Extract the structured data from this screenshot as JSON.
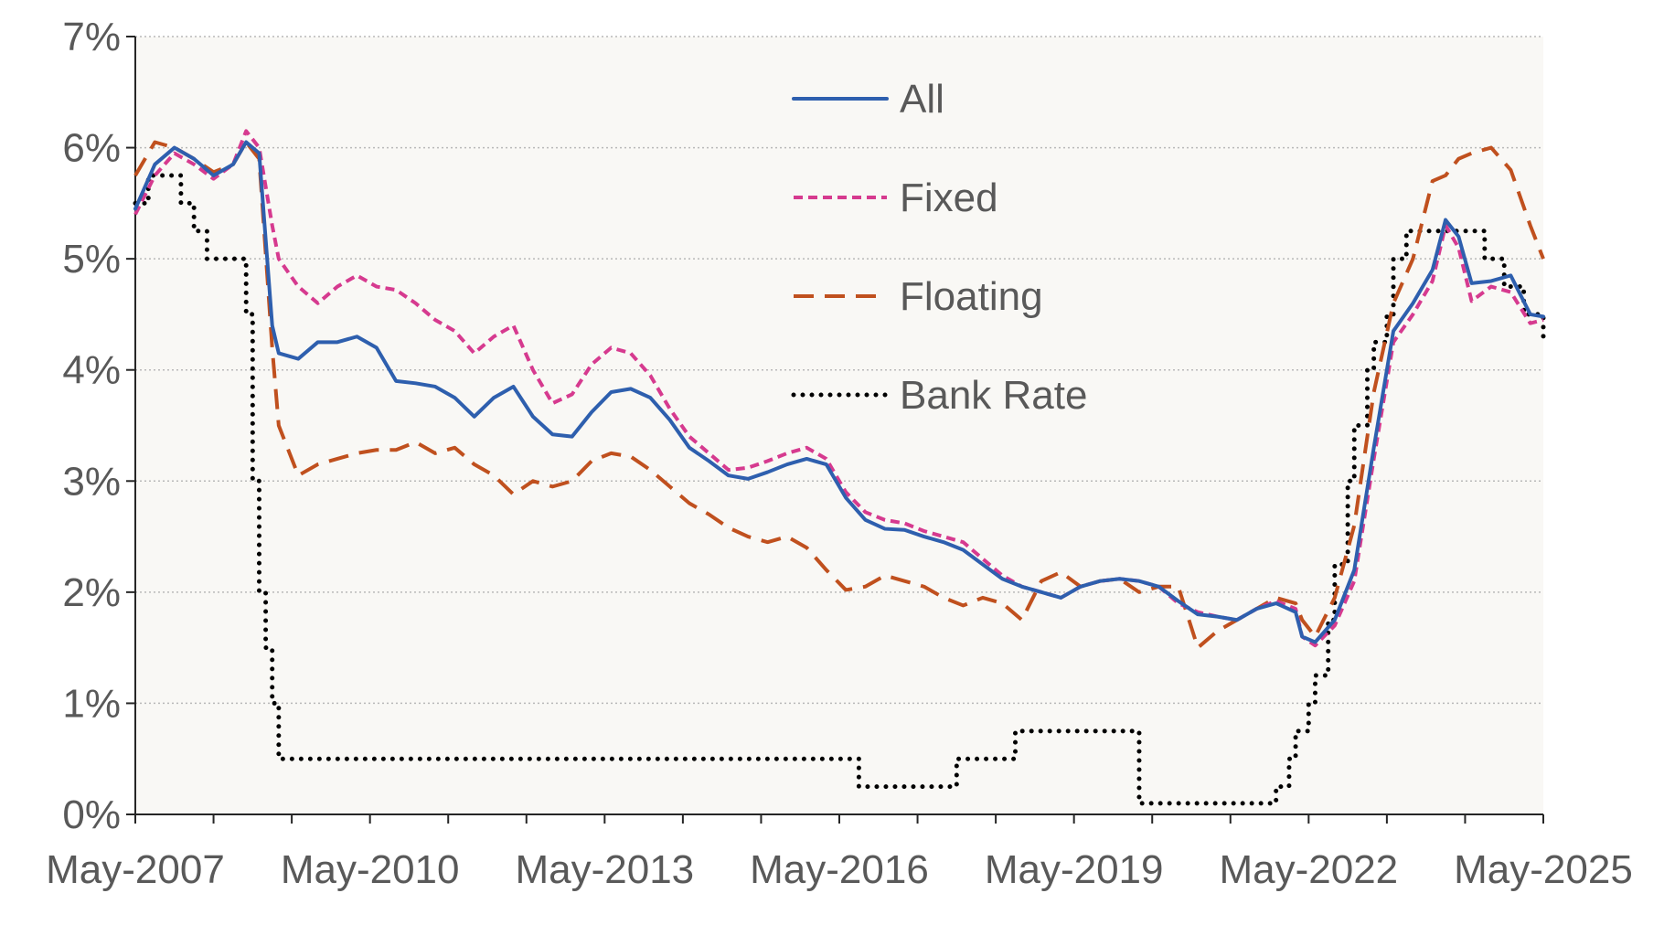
{
  "chart_data": {
    "type": "line",
    "x_unit": "month",
    "x_range": [
      "2007-05",
      "2025-05"
    ],
    "x_tick_labels": [
      "May-2007",
      "May-2010",
      "May-2013",
      "May-2016",
      "May-2019",
      "May-2022",
      "May-2025"
    ],
    "y_tick_labels": [
      "0%",
      "1%",
      "2%",
      "3%",
      "4%",
      "5%",
      "6%",
      "7%"
    ],
    "ylim": [
      0,
      7
    ],
    "grid": true,
    "legend_position": "top-center",
    "background_color": "#f9f8f5",
    "series": [
      {
        "name": "All",
        "style": "solid",
        "color": "#2e5fae",
        "points": [
          [
            "2007-05",
            5.45
          ],
          [
            "2007-08",
            5.85
          ],
          [
            "2007-11",
            6.0
          ],
          [
            "2008-02",
            5.9
          ],
          [
            "2008-05",
            5.75
          ],
          [
            "2008-08",
            5.85
          ],
          [
            "2008-10",
            6.05
          ],
          [
            "2008-12",
            5.95
          ],
          [
            "2009-02",
            4.4
          ],
          [
            "2009-03",
            4.15
          ],
          [
            "2009-06",
            4.1
          ],
          [
            "2009-09",
            4.25
          ],
          [
            "2009-12",
            4.25
          ],
          [
            "2010-03",
            4.3
          ],
          [
            "2010-06",
            4.2
          ],
          [
            "2010-09",
            3.9
          ],
          [
            "2010-12",
            3.88
          ],
          [
            "2011-03",
            3.85
          ],
          [
            "2011-06",
            3.75
          ],
          [
            "2011-09",
            3.58
          ],
          [
            "2011-12",
            3.75
          ],
          [
            "2012-03",
            3.85
          ],
          [
            "2012-06",
            3.58
          ],
          [
            "2012-09",
            3.42
          ],
          [
            "2012-12",
            3.4
          ],
          [
            "2013-03",
            3.62
          ],
          [
            "2013-06",
            3.8
          ],
          [
            "2013-09",
            3.83
          ],
          [
            "2013-12",
            3.75
          ],
          [
            "2014-03",
            3.55
          ],
          [
            "2014-06",
            3.3
          ],
          [
            "2014-09",
            3.18
          ],
          [
            "2014-12",
            3.05
          ],
          [
            "2015-03",
            3.02
          ],
          [
            "2015-06",
            3.08
          ],
          [
            "2015-09",
            3.15
          ],
          [
            "2015-12",
            3.2
          ],
          [
            "2016-03",
            3.15
          ],
          [
            "2016-06",
            2.85
          ],
          [
            "2016-09",
            2.65
          ],
          [
            "2016-12",
            2.57
          ],
          [
            "2017-03",
            2.56
          ],
          [
            "2017-06",
            2.5
          ],
          [
            "2017-09",
            2.45
          ],
          [
            "2017-12",
            2.38
          ],
          [
            "2018-03",
            2.25
          ],
          [
            "2018-06",
            2.12
          ],
          [
            "2018-09",
            2.05
          ],
          [
            "2018-12",
            2.0
          ],
          [
            "2019-03",
            1.95
          ],
          [
            "2019-06",
            2.05
          ],
          [
            "2019-09",
            2.1
          ],
          [
            "2019-12",
            2.12
          ],
          [
            "2020-03",
            2.1
          ],
          [
            "2020-06",
            2.05
          ],
          [
            "2020-09",
            1.92
          ],
          [
            "2020-12",
            1.8
          ],
          [
            "2021-03",
            1.78
          ],
          [
            "2021-06",
            1.75
          ],
          [
            "2021-09",
            1.85
          ],
          [
            "2021-12",
            1.9
          ],
          [
            "2022-03",
            1.82
          ],
          [
            "2022-04",
            1.6
          ],
          [
            "2022-06",
            1.55
          ],
          [
            "2022-09",
            1.75
          ],
          [
            "2022-12",
            2.2
          ],
          [
            "2023-03",
            3.3
          ],
          [
            "2023-06",
            4.35
          ],
          [
            "2023-09",
            4.6
          ],
          [
            "2023-12",
            4.9
          ],
          [
            "2024-02",
            5.35
          ],
          [
            "2024-04",
            5.2
          ],
          [
            "2024-06",
            4.78
          ],
          [
            "2024-09",
            4.8
          ],
          [
            "2024-12",
            4.85
          ],
          [
            "2025-03",
            4.5
          ],
          [
            "2025-05",
            4.48
          ]
        ]
      },
      {
        "name": "Fixed",
        "style": "dashed",
        "color": "#d63a8f",
        "points": [
          [
            "2007-05",
            5.4
          ],
          [
            "2007-08",
            5.75
          ],
          [
            "2007-11",
            5.95
          ],
          [
            "2008-02",
            5.85
          ],
          [
            "2008-05",
            5.72
          ],
          [
            "2008-08",
            5.85
          ],
          [
            "2008-10",
            6.15
          ],
          [
            "2008-12",
            6.0
          ],
          [
            "2009-02",
            5.3
          ],
          [
            "2009-03",
            5.0
          ],
          [
            "2009-06",
            4.75
          ],
          [
            "2009-09",
            4.6
          ],
          [
            "2009-12",
            4.75
          ],
          [
            "2010-03",
            4.85
          ],
          [
            "2010-06",
            4.75
          ],
          [
            "2010-09",
            4.72
          ],
          [
            "2010-12",
            4.6
          ],
          [
            "2011-03",
            4.45
          ],
          [
            "2011-06",
            4.35
          ],
          [
            "2011-09",
            4.15
          ],
          [
            "2011-12",
            4.3
          ],
          [
            "2012-03",
            4.4
          ],
          [
            "2012-06",
            4.0
          ],
          [
            "2012-09",
            3.7
          ],
          [
            "2012-12",
            3.78
          ],
          [
            "2013-03",
            4.05
          ],
          [
            "2013-06",
            4.2
          ],
          [
            "2013-09",
            4.15
          ],
          [
            "2013-12",
            3.95
          ],
          [
            "2014-03",
            3.65
          ],
          [
            "2014-06",
            3.4
          ],
          [
            "2014-09",
            3.25
          ],
          [
            "2014-12",
            3.1
          ],
          [
            "2015-03",
            3.12
          ],
          [
            "2015-06",
            3.18
          ],
          [
            "2015-09",
            3.25
          ],
          [
            "2015-12",
            3.3
          ],
          [
            "2016-03",
            3.2
          ],
          [
            "2016-06",
            2.9
          ],
          [
            "2016-09",
            2.72
          ],
          [
            "2016-12",
            2.65
          ],
          [
            "2017-03",
            2.62
          ],
          [
            "2017-06",
            2.55
          ],
          [
            "2017-09",
            2.5
          ],
          [
            "2017-12",
            2.45
          ],
          [
            "2018-03",
            2.3
          ],
          [
            "2018-06",
            2.15
          ],
          [
            "2018-09",
            2.05
          ],
          [
            "2018-12",
            2.0
          ],
          [
            "2019-03",
            1.95
          ],
          [
            "2019-06",
            2.05
          ],
          [
            "2019-09",
            2.1
          ],
          [
            "2019-12",
            2.12
          ],
          [
            "2020-03",
            2.1
          ],
          [
            "2020-06",
            2.05
          ],
          [
            "2020-09",
            1.9
          ],
          [
            "2020-12",
            1.82
          ],
          [
            "2021-03",
            1.78
          ],
          [
            "2021-06",
            1.75
          ],
          [
            "2021-09",
            1.85
          ],
          [
            "2021-12",
            1.92
          ],
          [
            "2022-03",
            1.85
          ],
          [
            "2022-04",
            1.6
          ],
          [
            "2022-06",
            1.52
          ],
          [
            "2022-09",
            1.7
          ],
          [
            "2022-12",
            2.1
          ],
          [
            "2023-03",
            3.2
          ],
          [
            "2023-06",
            4.25
          ],
          [
            "2023-09",
            4.5
          ],
          [
            "2023-12",
            4.8
          ],
          [
            "2024-02",
            5.3
          ],
          [
            "2024-04",
            5.1
          ],
          [
            "2024-06",
            4.62
          ],
          [
            "2024-09",
            4.75
          ],
          [
            "2024-12",
            4.7
          ],
          [
            "2025-03",
            4.42
          ],
          [
            "2025-05",
            4.45
          ]
        ]
      },
      {
        "name": "Floating",
        "style": "long-dashed",
        "color": "#c0501e",
        "points": [
          [
            "2007-05",
            5.75
          ],
          [
            "2007-08",
            6.05
          ],
          [
            "2007-11",
            6.0
          ],
          [
            "2008-02",
            5.9
          ],
          [
            "2008-05",
            5.78
          ],
          [
            "2008-08",
            5.85
          ],
          [
            "2008-10",
            6.05
          ],
          [
            "2008-12",
            5.9
          ],
          [
            "2009-02",
            4.2
          ],
          [
            "2009-03",
            3.5
          ],
          [
            "2009-06",
            3.05
          ],
          [
            "2009-09",
            3.15
          ],
          [
            "2009-12",
            3.2
          ],
          [
            "2010-03",
            3.25
          ],
          [
            "2010-06",
            3.28
          ],
          [
            "2010-09",
            3.28
          ],
          [
            "2010-12",
            3.35
          ],
          [
            "2011-03",
            3.25
          ],
          [
            "2011-06",
            3.3
          ],
          [
            "2011-09",
            3.15
          ],
          [
            "2011-12",
            3.05
          ],
          [
            "2012-03",
            2.88
          ],
          [
            "2012-06",
            3.0
          ],
          [
            "2012-09",
            2.95
          ],
          [
            "2012-12",
            3.0
          ],
          [
            "2013-03",
            3.18
          ],
          [
            "2013-06",
            3.25
          ],
          [
            "2013-09",
            3.22
          ],
          [
            "2013-12",
            3.1
          ],
          [
            "2014-03",
            2.95
          ],
          [
            "2014-06",
            2.8
          ],
          [
            "2014-09",
            2.7
          ],
          [
            "2014-12",
            2.58
          ],
          [
            "2015-03",
            2.5
          ],
          [
            "2015-06",
            2.45
          ],
          [
            "2015-09",
            2.5
          ],
          [
            "2015-12",
            2.4
          ],
          [
            "2016-03",
            2.2
          ],
          [
            "2016-06",
            2.02
          ],
          [
            "2016-09",
            2.05
          ],
          [
            "2016-12",
            2.15
          ],
          [
            "2017-03",
            2.1
          ],
          [
            "2017-06",
            2.05
          ],
          [
            "2017-09",
            1.95
          ],
          [
            "2017-12",
            1.88
          ],
          [
            "2018-03",
            1.95
          ],
          [
            "2018-06",
            1.9
          ],
          [
            "2018-09",
            1.75
          ],
          [
            "2018-12",
            2.1
          ],
          [
            "2019-03",
            2.18
          ],
          [
            "2019-06",
            2.05
          ],
          [
            "2019-09",
            2.1
          ],
          [
            "2019-12",
            2.12
          ],
          [
            "2020-03",
            2.0
          ],
          [
            "2020-06",
            2.05
          ],
          [
            "2020-09",
            2.05
          ],
          [
            "2020-12",
            1.5
          ],
          [
            "2021-03",
            1.65
          ],
          [
            "2021-06",
            1.75
          ],
          [
            "2021-09",
            1.85
          ],
          [
            "2021-12",
            1.95
          ],
          [
            "2022-03",
            1.9
          ],
          [
            "2022-04",
            1.75
          ],
          [
            "2022-06",
            1.6
          ],
          [
            "2022-09",
            1.95
          ],
          [
            "2022-12",
            2.6
          ],
          [
            "2023-03",
            3.8
          ],
          [
            "2023-06",
            4.6
          ],
          [
            "2023-09",
            5.0
          ],
          [
            "2023-12",
            5.7
          ],
          [
            "2024-02",
            5.75
          ],
          [
            "2024-04",
            5.9
          ],
          [
            "2024-06",
            5.95
          ],
          [
            "2024-09",
            6.0
          ],
          [
            "2024-12",
            5.8
          ],
          [
            "2025-03",
            5.3
          ],
          [
            "2025-05",
            5.0
          ]
        ]
      },
      {
        "name": "Bank Rate",
        "style": "dotted",
        "color": "#000000",
        "points": [
          [
            "2007-05",
            5.5
          ],
          [
            "2007-07",
            5.75
          ],
          [
            "2007-12",
            5.5
          ],
          [
            "2008-02",
            5.25
          ],
          [
            "2008-04",
            5.0
          ],
          [
            "2008-10",
            4.5
          ],
          [
            "2008-11",
            3.0
          ],
          [
            "2008-12",
            2.0
          ],
          [
            "2009-01",
            1.5
          ],
          [
            "2009-02",
            1.0
          ],
          [
            "2009-03",
            0.5
          ],
          [
            "2016-08",
            0.25
          ],
          [
            "2017-11",
            0.5
          ],
          [
            "2018-08",
            0.75
          ],
          [
            "2020-03",
            0.1
          ],
          [
            "2021-12",
            0.25
          ],
          [
            "2022-02",
            0.5
          ],
          [
            "2022-03",
            0.75
          ],
          [
            "2022-05",
            1.0
          ],
          [
            "2022-06",
            1.25
          ],
          [
            "2022-08",
            1.75
          ],
          [
            "2022-09",
            2.25
          ],
          [
            "2022-11",
            3.0
          ],
          [
            "2022-12",
            3.5
          ],
          [
            "2023-02",
            4.0
          ],
          [
            "2023-03",
            4.25
          ],
          [
            "2023-05",
            4.5
          ],
          [
            "2023-06",
            5.0
          ],
          [
            "2023-08",
            5.25
          ],
          [
            "2024-08",
            5.0
          ],
          [
            "2024-11",
            4.75
          ],
          [
            "2025-02",
            4.5
          ],
          [
            "2025-05",
            4.25
          ]
        ]
      }
    ]
  }
}
